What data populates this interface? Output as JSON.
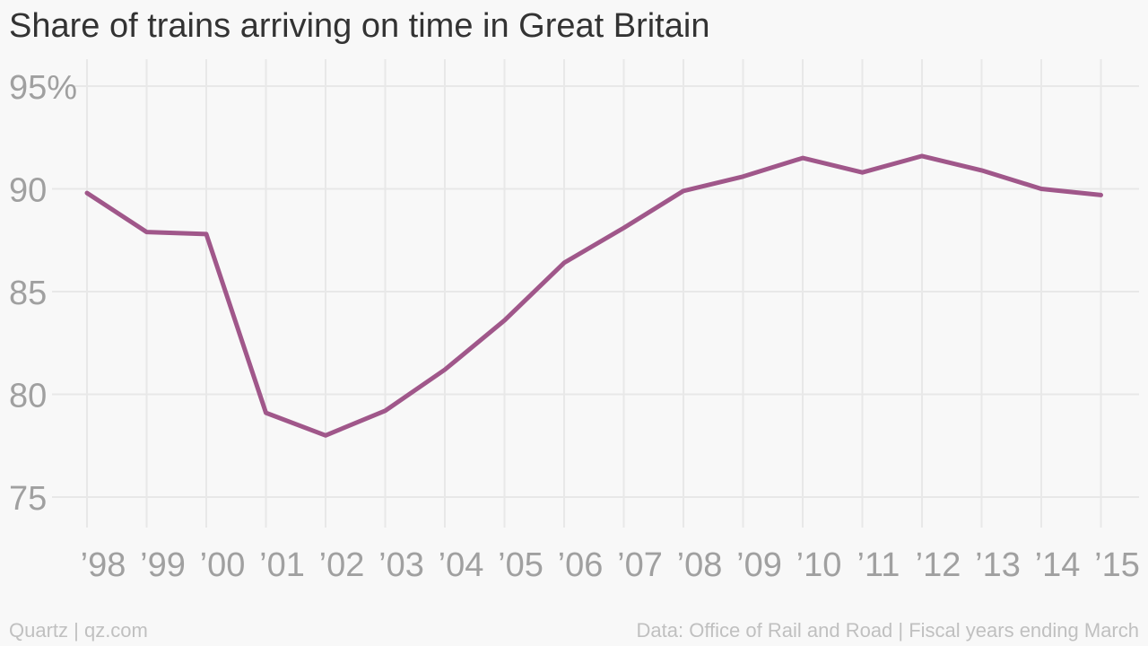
{
  "chart_data": {
    "type": "line",
    "title": "Share of trains arriving on time in Great Britain",
    "xlabel": "",
    "ylabel": "",
    "categories": [
      "’98",
      "’99",
      "’00",
      "’01",
      "’02",
      "’03",
      "’04",
      "’05",
      "’06",
      "’07",
      "’08",
      "’09",
      "’10",
      "’11",
      "’12",
      "’13",
      "’14",
      "’15"
    ],
    "series": [
      {
        "values": [
          89.8,
          87.9,
          87.8,
          79.1,
          78.0,
          79.2,
          81.2,
          83.6,
          86.4,
          88.1,
          89.9,
          90.6,
          91.5,
          90.8,
          91.6,
          90.9,
          90.0,
          89.7
        ]
      }
    ],
    "ylim": [
      74,
      96
    ],
    "yticks": [
      75,
      80,
      85,
      90,
      95
    ],
    "ytick_labels": [
      "75",
      "80",
      "85",
      "90",
      "95%"
    ],
    "grid": true,
    "line_color": "#a0578a",
    "grid_color": "#e8e8e8",
    "footer_left": "Quartz | qz.com",
    "footer_right": "Data: Office of Rail and Road | Fiscal years ending March"
  }
}
